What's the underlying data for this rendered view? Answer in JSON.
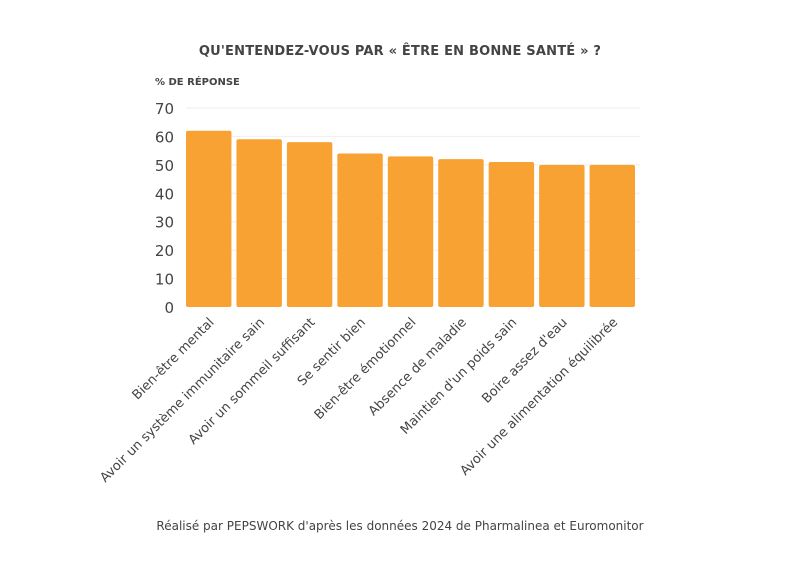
{
  "chart_data": {
    "type": "bar",
    "title": "QU'ENTENDEZ-VOUS PAR « ÊTRE EN BONNE SANTÉ » ?",
    "ylabel": "% DE RÉPONSE",
    "xlabel": "",
    "ylim": [
      0,
      70
    ],
    "yticks": [
      0,
      10,
      20,
      30,
      40,
      50,
      60,
      70
    ],
    "grid": true,
    "bar_color": "#F9A234",
    "categories": [
      "Bien-être mental",
      "Avoir un système immunitaire sain",
      "Avoir un sommeil suffisant",
      "Se sentir bien",
      "Bien-être émotionnel",
      "Absence de maladie",
      "Maintien d'un poids sain",
      "Boire assez d'eau",
      "Avoir une alimentation équilibrée"
    ],
    "values": [
      62,
      59,
      58,
      54,
      53,
      52,
      51,
      50,
      50
    ]
  },
  "source": "Réalisé par PEPSWORK d'après les données 2024 de Pharmalinea et Euromonitor"
}
